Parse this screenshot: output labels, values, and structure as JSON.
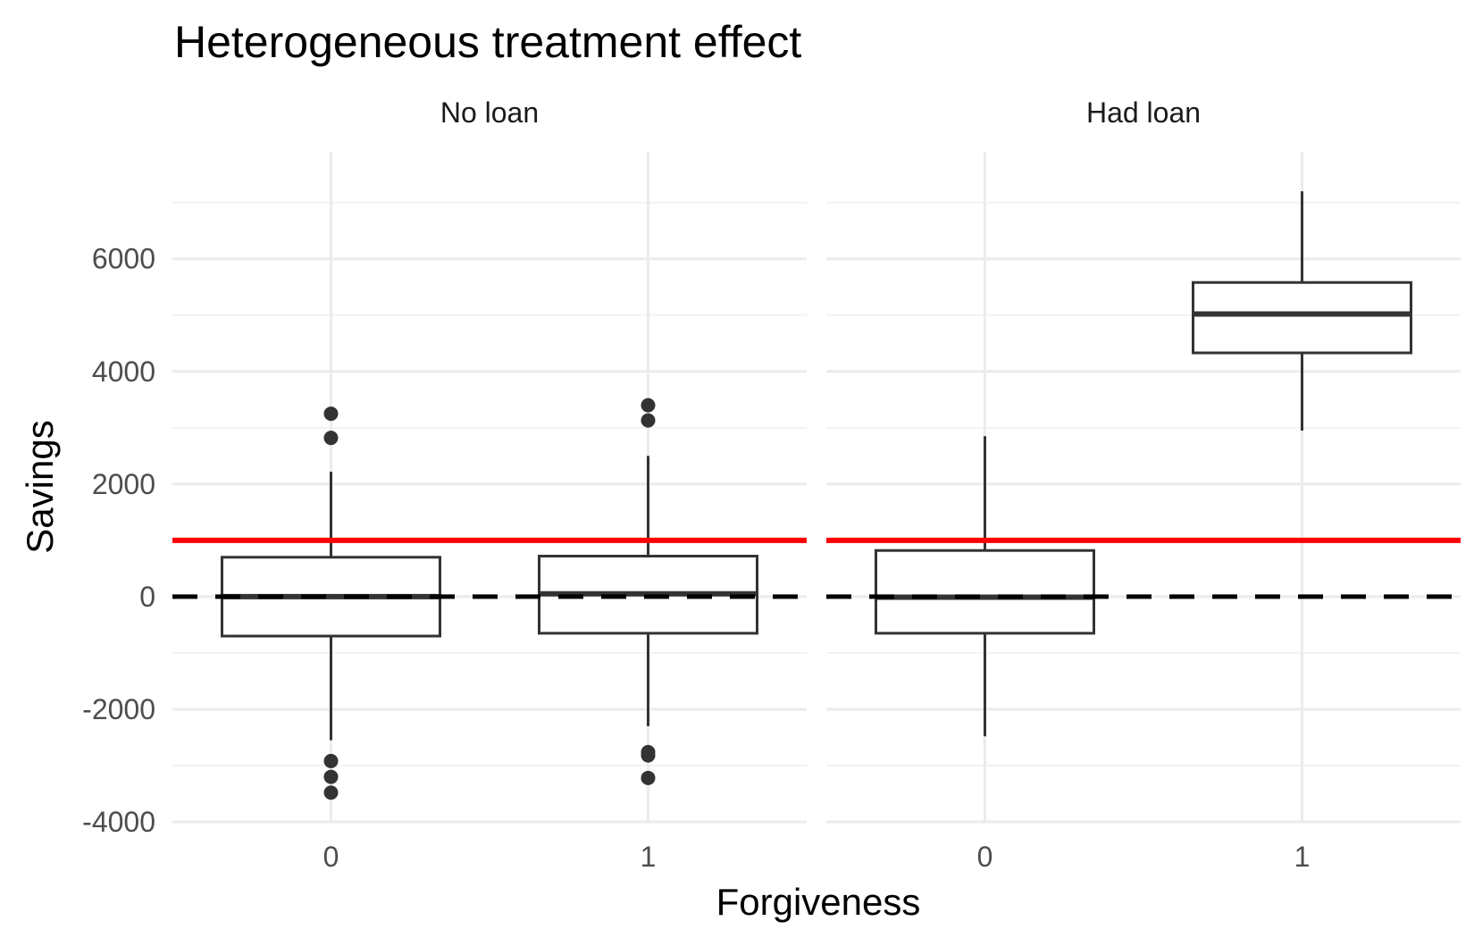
{
  "chart_data": {
    "type": "boxplot",
    "title": "Heterogeneous treatment effect",
    "xlabel": "Forgiveness",
    "ylabel": "Savings",
    "ylim": [
      -4000,
      7900
    ],
    "yticks": [
      -4000,
      -2000,
      0,
      2000,
      4000,
      6000
    ],
    "y_tick_labels": [
      "-4000",
      "-2000",
      "0",
      "2000",
      "4000",
      "6000"
    ],
    "categories": [
      "0",
      "1"
    ],
    "grid": true,
    "reference_lines": [
      {
        "value": 1000,
        "color": "#ff0000",
        "style": "solid"
      },
      {
        "value": 0,
        "color": "#000000",
        "style": "dashed"
      }
    ],
    "facets": [
      {
        "label": "No loan",
        "boxes": [
          {
            "x": "0",
            "lower_whisker": -2550,
            "q1": -700,
            "median": 0,
            "q3": 700,
            "upper_whisker": 2220,
            "outliers": [
              3250,
              2820,
              -2920,
              -3200,
              -3480
            ]
          },
          {
            "x": "1",
            "lower_whisker": -2300,
            "q1": -650,
            "median": 50,
            "q3": 720,
            "upper_whisker": 2500,
            "outliers": [
              3400,
              3130,
              -2760,
              -2820,
              -3220
            ]
          }
        ]
      },
      {
        "label": "Had loan",
        "boxes": [
          {
            "x": "0",
            "lower_whisker": -2480,
            "q1": -650,
            "median": -10,
            "q3": 820,
            "upper_whisker": 2850,
            "outliers": []
          },
          {
            "x": "1",
            "lower_whisker": 2950,
            "q1": 4330,
            "median": 5020,
            "q3": 5580,
            "upper_whisker": 7200,
            "outliers": []
          }
        ]
      }
    ]
  },
  "colors": {
    "box_outline": "#333333",
    "box_fill": "#ffffff",
    "grid_major": "#ebebeb",
    "grid_minor": "#f2f2f2",
    "reference_red": "#ff0000",
    "reference_dashed": "#000000"
  }
}
